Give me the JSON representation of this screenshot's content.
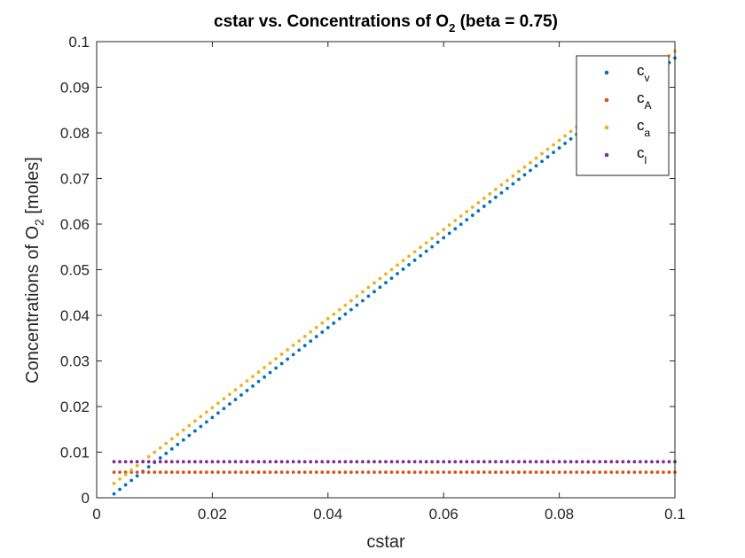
{
  "chart_data": {
    "type": "scatter",
    "title": "cstar vs. Concentrations of O",
    "title_sub": "2",
    "title_suffix": " (beta = 0.75)",
    "xlabel": "cstar",
    "ylabel": "Concentrations of O",
    "ylabel_sub": "2",
    "ylabel_suffix": " [moles]",
    "xlim": [
      0,
      0.1
    ],
    "ylim": [
      0,
      0.1
    ],
    "xticks": [
      "0",
      "0.02",
      "0.04",
      "0.06",
      "0.08",
      "0.1"
    ],
    "yticks": [
      "0",
      "0.01",
      "0.02",
      "0.03",
      "0.04",
      "0.05",
      "0.06",
      "0.07",
      "0.08",
      "0.09",
      "0.1"
    ],
    "grid": false,
    "legend_position": "top-right",
    "x_range": {
      "start": 0.003,
      "end": 0.1,
      "step": 0.001
    },
    "series": [
      {
        "name": "v",
        "legend_base": "c",
        "color": "#0072BD",
        "relation": "linear",
        "slope": 0.985,
        "intercept": -0.0021
      },
      {
        "name": "A",
        "legend_base": "c",
        "color": "#D95319",
        "relation": "constant",
        "value": 0.0056
      },
      {
        "name": "a",
        "legend_base": "c",
        "color": "#EDB120",
        "relation": "linear",
        "slope": 0.977,
        "intercept": 0.0002
      },
      {
        "name": "l",
        "legend_base": "c",
        "color": "#7E2F8E",
        "relation": "constant",
        "value": 0.0079
      }
    ]
  }
}
